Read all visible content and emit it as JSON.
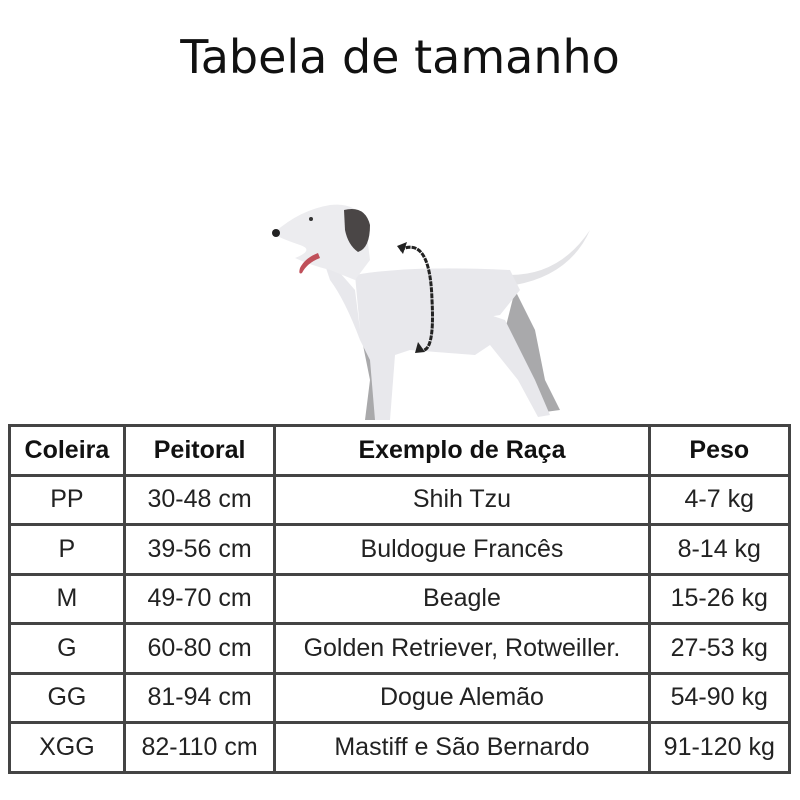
{
  "title": "Tabela de tamanho",
  "table": {
    "headers": [
      "Coleira",
      "Peitoral",
      "Exemplo de Raça",
      "Peso"
    ],
    "rows": [
      [
        "PP",
        "30-48 cm",
        "Shih Tzu",
        "4-7 kg"
      ],
      [
        "P",
        "39-56 cm",
        "Buldogue Francês",
        "8-14 kg"
      ],
      [
        "M",
        "49-70 cm",
        "Beagle",
        "15-26 kg"
      ],
      [
        "G",
        "60-80 cm",
        "Golden Retriever, Rotweiller.",
        "27-53 kg"
      ],
      [
        "GG",
        "81-94 cm",
        "Dogue Alemão",
        "54-90 kg"
      ],
      [
        "XGG",
        "82-110 cm",
        "Mastiff e São Bernardo",
        "91-120 kg"
      ]
    ]
  },
  "colors": {
    "dog_body": "#e8e8ec",
    "dog_shadow": "#a9a9ab",
    "ear": "#4a4646",
    "tongue": "#c0505a",
    "border": "#444444"
  }
}
